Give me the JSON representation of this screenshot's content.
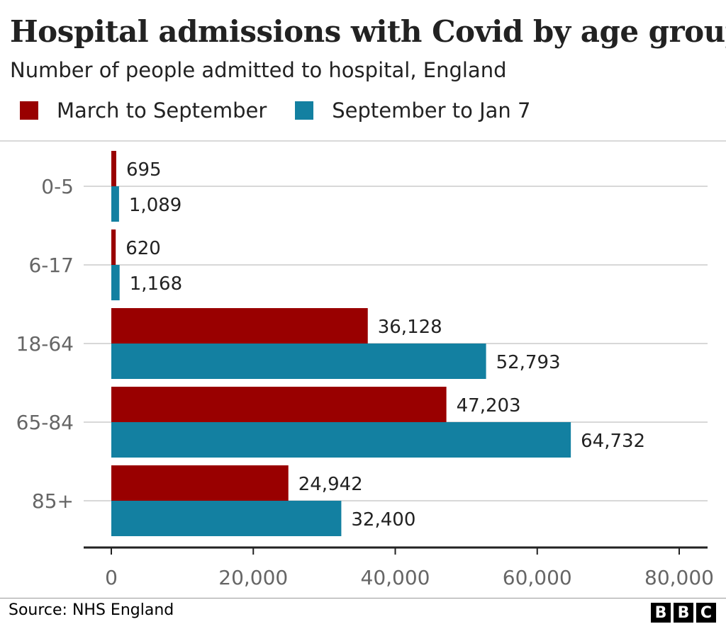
{
  "colors": {
    "series1": "#990000",
    "series2": "#1380A1",
    "grid": "#cccccc",
    "axis": "#222222"
  },
  "source": "Source: NHS England",
  "logo_letters": [
    "B",
    "B",
    "C"
  ],
  "chart_data": {
    "type": "bar",
    "orientation": "horizontal",
    "title": "Hospital admissions with Covid by age group",
    "subtitle": "Number of people admitted to hospital, England",
    "categories": [
      "0-5",
      "6-17",
      "18-64",
      "65-84",
      "85+"
    ],
    "series": [
      {
        "name": "March to September",
        "color": "#990000",
        "values": [
          695,
          620,
          36128,
          47203,
          24942
        ],
        "labels": [
          "695",
          "620",
          "36,128",
          "47,203",
          "24,942"
        ]
      },
      {
        "name": "September to Jan 7",
        "color": "#1380A1",
        "values": [
          1089,
          1168,
          52793,
          64732,
          32400
        ],
        "labels": [
          "1,089",
          "1,168",
          "52,793",
          "64,732",
          "32,400"
        ]
      }
    ],
    "xlim": [
      0,
      80000
    ],
    "xticks": [
      0,
      20000,
      40000,
      60000,
      80000
    ],
    "xtick_labels": [
      "0",
      "20,000",
      "40,000",
      "60,000",
      "80,000"
    ],
    "legend_position": "top-left",
    "grid": true
  }
}
